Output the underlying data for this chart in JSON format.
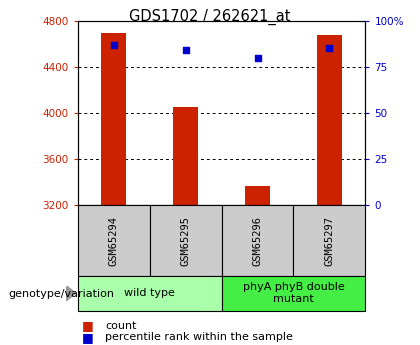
{
  "title": "GDS1702 / 262621_at",
  "samples": [
    "GSM65294",
    "GSM65295",
    "GSM65296",
    "GSM65297"
  ],
  "count_values": [
    4690,
    4050,
    3370,
    4680
  ],
  "percentile_values": [
    87,
    84,
    80,
    85
  ],
  "ylim_left": [
    3200,
    4800
  ],
  "ylim_right": [
    0,
    100
  ],
  "yticks_left": [
    3200,
    3600,
    4000,
    4400,
    4800
  ],
  "yticks_right": [
    0,
    25,
    50,
    75,
    100
  ],
  "ytick_labels_right": [
    "0",
    "25",
    "50",
    "75",
    "100%"
  ],
  "groups": [
    {
      "label": "wild type",
      "samples": [
        0,
        1
      ],
      "color": "#aaffaa"
    },
    {
      "label": "phyA phyB double\nmutant",
      "samples": [
        2,
        3
      ],
      "color": "#44ee44"
    }
  ],
  "bar_color": "#cc2200",
  "dot_color": "#0000cc",
  "bar_width": 0.35,
  "left_tick_color": "#cc2200",
  "right_tick_color": "#0000cc",
  "genotype_label": "genotype/variation",
  "legend_count_label": "count",
  "legend_percentile_label": "percentile rank within the sample",
  "sample_box_color": "#cccccc",
  "arrow_color": "#999999"
}
